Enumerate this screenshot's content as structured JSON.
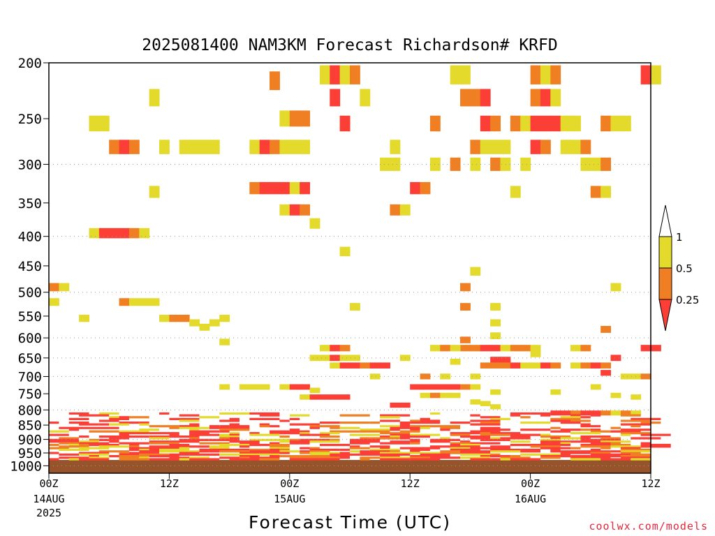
{
  "chart_data": {
    "type": "heatmap",
    "title": "2025081400 NAM3KM Forecast Richardson# KRFD",
    "xlabel": "Forecast Time (UTC)",
    "ylabel": "",
    "x_ticks": [
      {
        "hour": 0,
        "label": "00Z",
        "date": "14AUG",
        "year": "2025"
      },
      {
        "hour": 12,
        "label": "12Z"
      },
      {
        "hour": 24,
        "label": "00Z",
        "date": "15AUG"
      },
      {
        "hour": 36,
        "label": "12Z"
      },
      {
        "hour": 48,
        "label": "00Z",
        "date": "16AUG"
      },
      {
        "hour": 60,
        "label": "12Z"
      }
    ],
    "xlim": [
      0,
      60
    ],
    "ylim": [
      1000,
      200
    ],
    "y_scale": "log-pressure",
    "y_ticks": [
      200,
      250,
      300,
      350,
      400,
      450,
      500,
      550,
      600,
      650,
      700,
      750,
      800,
      850,
      900,
      950,
      1000
    ],
    "dotted_gridlines": [
      300,
      400,
      500,
      600,
      650,
      700,
      800,
      900,
      1000
    ],
    "ground_band": "below ~975 hPa (brown)",
    "colorbar": {
      "levels": [
        "1",
        "0.5",
        "0.25"
      ],
      "colors": {
        "gt1": "#ffffff",
        "0.5-1": "#e3da2b",
        "0.25-0.5": "#ef7f22",
        "lt0.25": "#fb3e36"
      }
    },
    "cells": [
      {
        "h": 0,
        "p": 490,
        "c": "o"
      },
      {
        "h": 1,
        "p": 490,
        "c": "y"
      },
      {
        "h": 0,
        "p": 520,
        "c": "y"
      },
      {
        "h": 4,
        "p": 255,
        "c": "y"
      },
      {
        "h": 5,
        "p": 255,
        "c": "y"
      },
      {
        "h": 6,
        "p": 280,
        "c": "o"
      },
      {
        "h": 7,
        "p": 280,
        "c": "r"
      },
      {
        "h": 8,
        "p": 280,
        "c": "o"
      },
      {
        "h": 10,
        "p": 230,
        "c": "y"
      },
      {
        "h": 11,
        "p": 280,
        "c": "y"
      },
      {
        "h": 13,
        "p": 280,
        "c": "y"
      },
      {
        "h": 14,
        "p": 280,
        "c": "y"
      },
      {
        "h": 15,
        "p": 280,
        "c": "y"
      },
      {
        "h": 16,
        "p": 280,
        "c": "y"
      },
      {
        "h": 4,
        "p": 395,
        "c": "y"
      },
      {
        "h": 5,
        "p": 395,
        "c": "r"
      },
      {
        "h": 6,
        "p": 395,
        "c": "r"
      },
      {
        "h": 7,
        "p": 395,
        "c": "r"
      },
      {
        "h": 8,
        "p": 395,
        "c": "o"
      },
      {
        "h": 9,
        "p": 395,
        "c": "y"
      },
      {
        "h": 10,
        "p": 335,
        "c": "y"
      },
      {
        "h": 7,
        "p": 520,
        "c": "o"
      },
      {
        "h": 8,
        "p": 520,
        "c": "y"
      },
      {
        "h": 9,
        "p": 520,
        "c": "y"
      },
      {
        "h": 10,
        "p": 520,
        "c": "y"
      },
      {
        "h": 3,
        "p": 555,
        "c": "y"
      },
      {
        "h": 11,
        "p": 555,
        "c": "y"
      },
      {
        "h": 12,
        "p": 555,
        "c": "o"
      },
      {
        "h": 13,
        "p": 555,
        "c": "o"
      },
      {
        "h": 14,
        "p": 565,
        "c": "y"
      },
      {
        "h": 15,
        "p": 575,
        "c": "y"
      },
      {
        "h": 16,
        "p": 565,
        "c": "y"
      },
      {
        "h": 17,
        "p": 555,
        "c": "y"
      },
      {
        "h": 17,
        "p": 610,
        "c": "y"
      },
      {
        "h": 20,
        "p": 280,
        "c": "y"
      },
      {
        "h": 21,
        "p": 280,
        "c": "r"
      },
      {
        "h": 22,
        "p": 280,
        "c": "o"
      },
      {
        "h": 20,
        "p": 330,
        "c": "o"
      },
      {
        "h": 21,
        "p": 330,
        "c": "r"
      },
      {
        "h": 22,
        "p": 330,
        "c": "r"
      },
      {
        "h": 23,
        "p": 330,
        "c": "r"
      },
      {
        "h": 24,
        "p": 330,
        "c": "y"
      },
      {
        "h": 25,
        "p": 330,
        "c": "r"
      },
      {
        "h": 22,
        "p": 215,
        "c": "o"
      },
      {
        "h": 23,
        "p": 250,
        "c": "y"
      },
      {
        "h": 24,
        "p": 250,
        "c": "o"
      },
      {
        "h": 25,
        "p": 250,
        "c": "o"
      },
      {
        "h": 23,
        "p": 280,
        "c": "y"
      },
      {
        "h": 24,
        "p": 280,
        "c": "y"
      },
      {
        "h": 25,
        "p": 280,
        "c": "y"
      },
      {
        "h": 23,
        "p": 360,
        "c": "y"
      },
      {
        "h": 24,
        "p": 360,
        "c": "r"
      },
      {
        "h": 25,
        "p": 360,
        "c": "o"
      },
      {
        "h": 26,
        "p": 380,
        "c": "y"
      },
      {
        "h": 27,
        "p": 210,
        "c": "y"
      },
      {
        "h": 28,
        "p": 210,
        "c": "r"
      },
      {
        "h": 29,
        "p": 210,
        "c": "y"
      },
      {
        "h": 30,
        "p": 210,
        "c": "o"
      },
      {
        "h": 28,
        "p": 230,
        "c": "r"
      },
      {
        "h": 29,
        "p": 255,
        "c": "r"
      },
      {
        "h": 31,
        "p": 230,
        "c": "y"
      },
      {
        "h": 29,
        "p": 425,
        "c": "y"
      },
      {
        "h": 30,
        "p": 530,
        "c": "y"
      },
      {
        "h": 33,
        "p": 300,
        "c": "y"
      },
      {
        "h": 34,
        "p": 300,
        "c": "y"
      },
      {
        "h": 34,
        "p": 280,
        "c": "y"
      },
      {
        "h": 34,
        "p": 360,
        "c": "o"
      },
      {
        "h": 35,
        "p": 360,
        "c": "y"
      },
      {
        "h": 36,
        "p": 330,
        "c": "r"
      },
      {
        "h": 37,
        "p": 330,
        "c": "o"
      },
      {
        "h": 38,
        "p": 300,
        "c": "y"
      },
      {
        "h": 38,
        "p": 255,
        "c": "o"
      },
      {
        "h": 40,
        "p": 300,
        "c": "o"
      },
      {
        "h": 40,
        "p": 210,
        "c": "y"
      },
      {
        "h": 41,
        "p": 210,
        "c": "y"
      },
      {
        "h": 41,
        "p": 230,
        "c": "o"
      },
      {
        "h": 42,
        "p": 230,
        "c": "o"
      },
      {
        "h": 43,
        "p": 230,
        "c": "r"
      },
      {
        "h": 43,
        "p": 255,
        "c": "r"
      },
      {
        "h": 44,
        "p": 255,
        "c": "o"
      },
      {
        "h": 42,
        "p": 280,
        "c": "o"
      },
      {
        "h": 43,
        "p": 280,
        "c": "y"
      },
      {
        "h": 44,
        "p": 280,
        "c": "y"
      },
      {
        "h": 45,
        "p": 280,
        "c": "y"
      },
      {
        "h": 42,
        "p": 300,
        "c": "y"
      },
      {
        "h": 44,
        "p": 300,
        "c": "o"
      },
      {
        "h": 45,
        "p": 300,
        "c": "y"
      },
      {
        "h": 46,
        "p": 255,
        "c": "o"
      },
      {
        "h": 47,
        "p": 255,
        "c": "y"
      },
      {
        "h": 48,
        "p": 255,
        "c": "r"
      },
      {
        "h": 49,
        "p": 255,
        "c": "r"
      },
      {
        "h": 50,
        "p": 255,
        "c": "r"
      },
      {
        "h": 48,
        "p": 230,
        "c": "o"
      },
      {
        "h": 49,
        "p": 230,
        "c": "r"
      },
      {
        "h": 50,
        "p": 230,
        "c": "y"
      },
      {
        "h": 48,
        "p": 210,
        "c": "o"
      },
      {
        "h": 49,
        "p": 210,
        "c": "y"
      },
      {
        "h": 50,
        "p": 210,
        "c": "o"
      },
      {
        "h": 51,
        "p": 255,
        "c": "y"
      },
      {
        "h": 52,
        "p": 255,
        "c": "y"
      },
      {
        "h": 48,
        "p": 280,
        "c": "r"
      },
      {
        "h": 49,
        "p": 280,
        "c": "o"
      },
      {
        "h": 51,
        "p": 280,
        "c": "y"
      },
      {
        "h": 52,
        "p": 280,
        "c": "y"
      },
      {
        "h": 53,
        "p": 280,
        "c": "o"
      },
      {
        "h": 47,
        "p": 300,
        "c": "y"
      },
      {
        "h": 53,
        "p": 300,
        "c": "y"
      },
      {
        "h": 54,
        "p": 300,
        "c": "y"
      },
      {
        "h": 55,
        "p": 300,
        "c": "o"
      },
      {
        "h": 55,
        "p": 255,
        "c": "o"
      },
      {
        "h": 56,
        "p": 255,
        "c": "y"
      },
      {
        "h": 57,
        "p": 255,
        "c": "y"
      },
      {
        "h": 46,
        "p": 335,
        "c": "y"
      },
      {
        "h": 54,
        "p": 335,
        "c": "o"
      },
      {
        "h": 55,
        "p": 335,
        "c": "y"
      },
      {
        "h": 59,
        "p": 210,
        "c": "r"
      },
      {
        "h": 60,
        "p": 210,
        "c": "y"
      },
      {
        "h": 42,
        "p": 460,
        "c": "y"
      },
      {
        "h": 41,
        "p": 490,
        "c": "o"
      },
      {
        "h": 56,
        "p": 490,
        "c": "y"
      },
      {
        "h": 41,
        "p": 530,
        "c": "o"
      },
      {
        "h": 44,
        "p": 530,
        "c": "y"
      },
      {
        "h": 44,
        "p": 565,
        "c": "y"
      },
      {
        "h": 41,
        "p": 605,
        "c": "o"
      },
      {
        "h": 41,
        "p": 625,
        "c": "o"
      },
      {
        "h": 42,
        "p": 625,
        "c": "o"
      },
      {
        "h": 43,
        "p": 625,
        "c": "r"
      },
      {
        "h": 44,
        "p": 625,
        "c": "r"
      },
      {
        "h": 45,
        "p": 625,
        "c": "y"
      },
      {
        "h": 46,
        "p": 625,
        "c": "o"
      },
      {
        "h": 47,
        "p": 625,
        "c": "o"
      },
      {
        "h": 48,
        "p": 625,
        "c": "y"
      },
      {
        "h": 44,
        "p": 595,
        "c": "y"
      },
      {
        "h": 44,
        "p": 655,
        "c": "r"
      },
      {
        "h": 45,
        "p": 655,
        "c": "r"
      },
      {
        "h": 43,
        "p": 670,
        "c": "o"
      },
      {
        "h": 44,
        "p": 670,
        "c": "o"
      },
      {
        "h": 45,
        "p": 670,
        "c": "o"
      },
      {
        "h": 46,
        "p": 670,
        "c": "r"
      },
      {
        "h": 47,
        "p": 670,
        "c": "y"
      },
      {
        "h": 48,
        "p": 670,
        "c": "y"
      },
      {
        "h": 49,
        "p": 670,
        "c": "r"
      },
      {
        "h": 50,
        "p": 670,
        "c": "o"
      },
      {
        "h": 52,
        "p": 670,
        "c": "y"
      },
      {
        "h": 53,
        "p": 670,
        "c": "o"
      },
      {
        "h": 54,
        "p": 670,
        "c": "r"
      },
      {
        "h": 55,
        "p": 670,
        "c": "o"
      },
      {
        "h": 48,
        "p": 640,
        "c": "y"
      },
      {
        "h": 52,
        "p": 625,
        "c": "y"
      },
      {
        "h": 53,
        "p": 625,
        "c": "o"
      },
      {
        "h": 56,
        "p": 650,
        "c": "r"
      },
      {
        "h": 55,
        "p": 580,
        "c": "o"
      },
      {
        "h": 59,
        "p": 625,
        "c": "r"
      },
      {
        "h": 60,
        "p": 625,
        "c": "r"
      },
      {
        "h": 55,
        "p": 690,
        "c": "r"
      },
      {
        "h": 57,
        "p": 700,
        "c": "y"
      },
      {
        "h": 58,
        "p": 700,
        "c": "y"
      },
      {
        "h": 59,
        "p": 700,
        "c": "o"
      },
      {
        "h": 38,
        "p": 625,
        "c": "y"
      },
      {
        "h": 39,
        "p": 625,
        "c": "o"
      },
      {
        "h": 40,
        "p": 625,
        "c": "y"
      },
      {
        "h": 40,
        "p": 660,
        "c": "y"
      },
      {
        "h": 35,
        "p": 650,
        "c": "y"
      },
      {
        "h": 32,
        "p": 700,
        "c": "y"
      },
      {
        "h": 27,
        "p": 625,
        "c": "y"
      },
      {
        "h": 28,
        "p": 625,
        "c": "r"
      },
      {
        "h": 29,
        "p": 625,
        "c": "o"
      },
      {
        "h": 26,
        "p": 650,
        "c": "y"
      },
      {
        "h": 27,
        "p": 650,
        "c": "y"
      },
      {
        "h": 28,
        "p": 650,
        "c": "r"
      },
      {
        "h": 29,
        "p": 650,
        "c": "y"
      },
      {
        "h": 30,
        "p": 650,
        "c": "y"
      },
      {
        "h": 28,
        "p": 670,
        "c": "y"
      },
      {
        "h": 29,
        "p": 670,
        "c": "r"
      },
      {
        "h": 30,
        "p": 670,
        "c": "r"
      },
      {
        "h": 31,
        "p": 670,
        "c": "o"
      },
      {
        "h": 32,
        "p": 670,
        "c": "r"
      },
      {
        "h": 33,
        "p": 670,
        "c": "r"
      },
      {
        "h": 37,
        "p": 700,
        "c": "o"
      },
      {
        "h": 39,
        "p": 700,
        "c": "y"
      },
      {
        "h": 42,
        "p": 700,
        "c": "y"
      },
      {
        "h": 36,
        "p": 730,
        "c": "r"
      },
      {
        "h": 37,
        "p": 730,
        "c": "r"
      },
      {
        "h": 38,
        "p": 730,
        "c": "r"
      },
      {
        "h": 39,
        "p": 730,
        "c": "r"
      },
      {
        "h": 40,
        "p": 730,
        "c": "r"
      },
      {
        "h": 41,
        "p": 730,
        "c": "o"
      },
      {
        "h": 42,
        "p": 730,
        "c": "y"
      },
      {
        "h": 37,
        "p": 755,
        "c": "y"
      },
      {
        "h": 38,
        "p": 755,
        "c": "o"
      },
      {
        "h": 39,
        "p": 755,
        "c": "y"
      },
      {
        "h": 40,
        "p": 755,
        "c": "y"
      },
      {
        "h": 34,
        "p": 785,
        "c": "r"
      },
      {
        "h": 35,
        "p": 785,
        "c": "r"
      },
      {
        "h": 19,
        "p": 730,
        "c": "y"
      },
      {
        "h": 20,
        "p": 730,
        "c": "y"
      },
      {
        "h": 21,
        "p": 730,
        "c": "y"
      },
      {
        "h": 23,
        "p": 730,
        "c": "y"
      },
      {
        "h": 24,
        "p": 730,
        "c": "r"
      },
      {
        "h": 25,
        "p": 730,
        "c": "r"
      },
      {
        "h": 26,
        "p": 740,
        "c": "y"
      },
      {
        "h": 25,
        "p": 760,
        "c": "y"
      },
      {
        "h": 26,
        "p": 760,
        "c": "r"
      },
      {
        "h": 27,
        "p": 760,
        "c": "r"
      },
      {
        "h": 28,
        "p": 760,
        "c": "r"
      },
      {
        "h": 29,
        "p": 760,
        "c": "r"
      },
      {
        "h": 17,
        "p": 730,
        "c": "y"
      },
      {
        "h": 44,
        "p": 745,
        "c": "y"
      },
      {
        "h": 50,
        "p": 745,
        "c": "y"
      },
      {
        "h": 43,
        "p": 780,
        "c": "y"
      },
      {
        "h": 44,
        "p": 790,
        "c": "y"
      },
      {
        "h": 42,
        "p": 775,
        "c": "y"
      },
      {
        "h": 54,
        "p": 730,
        "c": "y"
      },
      {
        "h": 56,
        "p": 755,
        "c": "y"
      },
      {
        "h": 58,
        "p": 760,
        "c": "y"
      },
      {
        "h": 50,
        "p": 810,
        "c": "r"
      },
      {
        "h": 51,
        "p": 810,
        "c": "r"
      },
      {
        "h": 52,
        "p": 810,
        "c": "o"
      },
      {
        "h": 53,
        "p": 810,
        "c": "r"
      },
      {
        "h": 54,
        "p": 810,
        "c": "r"
      },
      {
        "h": 55,
        "p": 810,
        "c": "o"
      },
      {
        "h": 56,
        "p": 810,
        "c": "y"
      },
      {
        "h": 57,
        "p": 810,
        "c": "o"
      },
      {
        "h": 58,
        "p": 810,
        "c": "y"
      }
    ]
  },
  "credit": "coolwx.com/models"
}
